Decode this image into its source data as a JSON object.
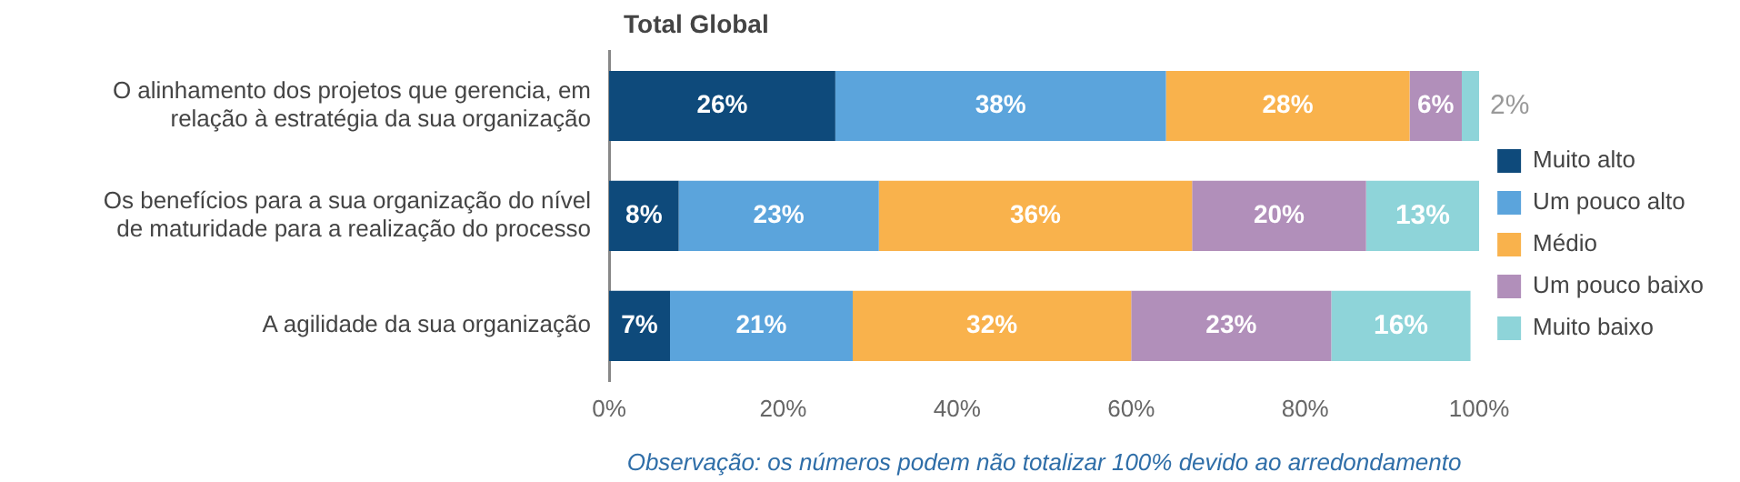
{
  "chart_data": {
    "type": "bar",
    "orientation": "horizontal",
    "stacked": true,
    "title": "Total Global",
    "categories": [
      "O alinhamento dos projetos que gerencia, em relação à estratégia da sua organização",
      "Os benefícios para a sua organização do nível de maturidade para a realização do processo",
      "A agilidade da sua organização"
    ],
    "series": [
      {
        "name": "Muito alto",
        "color": "#0e4a7b",
        "values": [
          26,
          8,
          7
        ],
        "value_labels": [
          "26%",
          "8%",
          "7%"
        ]
      },
      {
        "name": "Um pouco alto",
        "color": "#5ba4dc",
        "values": [
          38,
          23,
          21
        ],
        "value_labels": [
          "38%",
          "23%",
          "21%"
        ]
      },
      {
        "name": "Médio",
        "color": "#f9b24c",
        "values": [
          28,
          36,
          32
        ],
        "value_labels": [
          "28%",
          "36%",
          "32%"
        ]
      },
      {
        "name": "Um pouco baixo",
        "color": "#b18fba",
        "values": [
          6,
          20,
          23
        ],
        "value_labels": [
          "6%",
          "20%",
          "23%"
        ]
      },
      {
        "name": "Muito baixo",
        "color": "#8ed4d9",
        "values": [
          2,
          13,
          16
        ],
        "value_labels": [
          "2%",
          "13%",
          "16%"
        ]
      }
    ],
    "xlim": [
      0,
      100
    ],
    "xticks": [
      {
        "value": 0,
        "label": "0%"
      },
      {
        "value": 20,
        "label": "20%"
      },
      {
        "value": 40,
        "label": "40%"
      },
      {
        "value": 60,
        "label": "60%"
      },
      {
        "value": 80,
        "label": "80%"
      },
      {
        "value": 100,
        "label": "100%"
      }
    ],
    "grid": false,
    "legend": "right",
    "annotations": [
      "Observação: os números podem não totalizar 100% devido ao arredondamento"
    ]
  }
}
